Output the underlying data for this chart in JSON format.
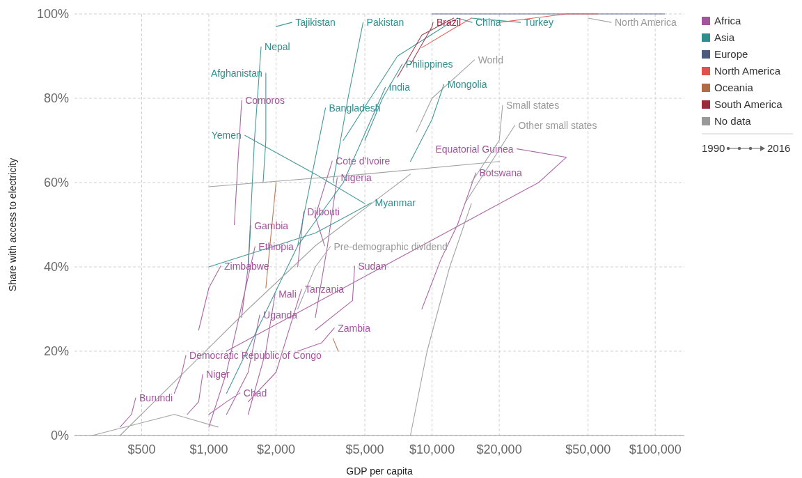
{
  "chart_data": {
    "type": "line",
    "xlabel": "GDP per capita",
    "ylabel": "Share with access to electricity",
    "log": "x",
    "grid": true,
    "legend": "top right",
    "line_style": "solid",
    "xlim": [
      250,
      135000
    ],
    "xticks": [
      {
        "value": 500,
        "label": "$500"
      },
      {
        "value": 1000,
        "label": "$1,000"
      },
      {
        "value": 2000,
        "label": "$2,000"
      },
      {
        "value": 5000,
        "label": "$5,000"
      },
      {
        "value": 10000,
        "label": "$10,000"
      },
      {
        "value": 20000,
        "label": "$20,000"
      },
      {
        "value": 50000,
        "label": "$50,000"
      },
      {
        "value": 100000,
        "label": "$100,000"
      }
    ],
    "ylim": [
      0,
      100
    ],
    "yticks": [
      {
        "value": 0,
        "label": "0%"
      },
      {
        "value": 20,
        "label": "20%"
      },
      {
        "value": 40,
        "label": "40%"
      },
      {
        "value": 60,
        "label": "60%"
      },
      {
        "value": 80,
        "label": "80%"
      },
      {
        "value": 100,
        "label": "100%"
      }
    ],
    "series": [
      {
        "name": "Africa",
        "color": "#a2559c",
        "x": [
          1300,
          1350,
          1403,
          null,
          1200,
          6000,
          30000,
          40000,
          24000,
          null,
          9000,
          11000,
          13000,
          15700,
          null,
          3300,
          3000,
          3570,
          null,
          3000,
          3400,
          3760,
          null,
          2500,
          2660,
          null,
          1400,
          1500,
          1540,
          null,
          1000,
          1200,
          1610,
          null,
          900,
          1000,
          1130,
          null,
          3000,
          4400,
          4500,
          null,
          1500,
          1800,
          1980,
          null,
          1500,
          2000,
          2600,
          null,
          1200,
          1500,
          1690,
          null,
          2500,
          3200,
          3650,
          null,
          700,
          750,
          789,
          null,
          800,
          900,
          938,
          null,
          1000,
          1200,
          1380,
          null,
          400,
          450,
          470
        ],
        "values": [
          50,
          65,
          79.5,
          null,
          20,
          40,
          60,
          66,
          68,
          null,
          30,
          42,
          50,
          62.3,
          null,
          45,
          52,
          65.1,
          null,
          28,
          45,
          61.2,
          null,
          40,
          53.1,
          null,
          28,
          40,
          49.8,
          null,
          2,
          15,
          44.8,
          null,
          25,
          35,
          40.2,
          null,
          25,
          32,
          40.2,
          null,
          5,
          20,
          33.6,
          null,
          8,
          15,
          34.7,
          null,
          5,
          15,
          28.6,
          null,
          20,
          22,
          25.5,
          null,
          10,
          14,
          19,
          null,
          5,
          8,
          14.5,
          null,
          5,
          8,
          10.1,
          null,
          2,
          5,
          8.9
        ]
      },
      {
        "name": "Asia",
        "color": "#2f8f8f",
        "x": [
          2000,
          2355,
          null,
          3600,
          4200,
          4910,
          null,
          4000,
          7000,
          13000,
          15100,
          null,
          15000,
          24900,
          null,
          1500,
          1600,
          1714,
          null,
          5000,
          6000,
          7350,
          null,
          2500,
          4000,
          6180,
          null,
          8000,
          10000,
          11300,
          null,
          1750,
          1800,
          1800,
          null,
          1200,
          2500,
          3330,
          null,
          5000,
          3000,
          1450,
          null,
          1000,
          3000,
          5350
        ],
        "values": [
          97,
          98,
          null,
          60,
          80,
          98,
          null,
          70,
          90,
          99,
          98,
          null,
          99,
          98,
          null,
          40,
          70,
          92.2,
          null,
          70,
          80,
          88.1,
          null,
          45,
          60,
          82.6,
          null,
          65,
          75,
          83.3,
          null,
          60,
          70,
          86,
          null,
          10,
          45,
          77.7,
          null,
          55,
          62,
          71.2,
          null,
          40,
          48,
          55.2
        ]
      },
      {
        "name": "Europe",
        "color": "#4c5a7d",
        "x": [
          10000,
          30000,
          70000,
          110000
        ],
        "values": [
          100,
          100,
          100,
          100
        ]
      },
      {
        "name": "North America",
        "color": "#e0524d",
        "x": [
          9000,
          12000,
          15000,
          null,
          20000,
          40000,
          55000
        ],
        "values": [
          92,
          96,
          99,
          null,
          98,
          100,
          100
        ]
      },
      {
        "name": "Oceania",
        "color": "#b16c46",
        "x": [
          1800,
          2000,
          null,
          3800,
          3600
        ],
        "values": [
          35,
          60,
          null,
          20,
          23
        ]
      },
      {
        "name": "South America",
        "color": "#9a2a3a",
        "x": [
          8000,
          10000,
          10100,
          null,
          7000,
          9000,
          12500
        ],
        "values": [
          88,
          97,
          98,
          null,
          85,
          95,
          99
        ]
      },
      {
        "name": "No data",
        "color": "#999999",
        "x": [
          8500,
          10000,
          15500,
          null,
          15000,
          20000,
          20700,
          null,
          14000,
          23500,
          null,
          2500,
          3000,
          3500,
          null,
          50000,
          63500,
          null,
          300,
          700,
          1100,
          null,
          8000,
          9500,
          12000,
          15000,
          null,
          1000,
          5000,
          20000,
          null,
          400,
          1500,
          3000,
          8000
        ],
        "values": [
          72,
          80,
          89.1,
          null,
          60,
          70,
          78.3,
          null,
          55,
          73.6,
          null,
          30,
          40,
          44.8,
          null,
          99,
          98,
          null,
          0,
          5,
          2,
          null,
          0,
          20,
          40,
          55,
          null,
          59,
          62,
          65,
          null,
          0,
          30,
          45,
          62
        ]
      }
    ],
    "annotations": [
      "1990",
      "2016",
      {
        "text": "Tajikistan",
        "x": 2355,
        "y": 98
      },
      {
        "text": "Pakistan",
        "x": 4910,
        "y": 98
      },
      {
        "text": "Brazil",
        "x": 10100,
        "y": 98
      },
      {
        "text": "China",
        "x": 15100,
        "y": 98
      },
      {
        "text": "Turkey",
        "x": 24900,
        "y": 98
      },
      {
        "text": "North America",
        "x": 63500,
        "y": 98
      },
      {
        "text": "Nepal",
        "x": 1714,
        "y": 92.2
      },
      {
        "text": "Philippines",
        "x": 7350,
        "y": 88.1
      },
      {
        "text": "World",
        "x": 15500,
        "y": 89.1
      },
      {
        "text": "Afghanistan",
        "x": 1800,
        "y": 86
      },
      {
        "text": "India",
        "x": 6180,
        "y": 82.6
      },
      {
        "text": "Mongolia",
        "x": 11300,
        "y": 83.3
      },
      {
        "text": "Comoros",
        "x": 1403,
        "y": 79.5
      },
      {
        "text": "Bangladesh",
        "x": 3330,
        "y": 77.7
      },
      {
        "text": "Small states",
        "x": 20700,
        "y": 78.3
      },
      {
        "text": "Other small states",
        "x": 23500,
        "y": 73.6
      },
      {
        "text": "Yemen",
        "x": 1450,
        "y": 71.2
      },
      {
        "text": "Equatorial Guinea",
        "x": 24000,
        "y": 68
      },
      {
        "text": "Cote d'Ivoire",
        "x": 3570,
        "y": 65.1
      },
      {
        "text": "Botswana",
        "x": 15700,
        "y": 62.3
      },
      {
        "text": "Nigeria",
        "x": 3760,
        "y": 61.2
      },
      {
        "text": "Myanmar",
        "x": 5350,
        "y": 55.2
      },
      {
        "text": "Djibouti",
        "x": 2660,
        "y": 53.1
      },
      {
        "text": "Gambia",
        "x": 1540,
        "y": 49.8
      },
      {
        "text": "Ethiopia",
        "x": 1610,
        "y": 44.8
      },
      {
        "text": "Pre-demographic dividend",
        "x": 3500,
        "y": 44.8
      },
      {
        "text": "Zimbabwe",
        "x": 1130,
        "y": 40.2
      },
      {
        "text": "Sudan",
        "x": 4500,
        "y": 40.2
      },
      {
        "text": "Mali",
        "x": 1980,
        "y": 33.6
      },
      {
        "text": "Tanzania",
        "x": 2600,
        "y": 34.7
      },
      {
        "text": "Uganda",
        "x": 1690,
        "y": 28.6
      },
      {
        "text": "Zambia",
        "x": 3650,
        "y": 25.5
      },
      {
        "text": "Democratic Republic of Congo",
        "x": 789,
        "y": 19
      },
      {
        "text": "Niger",
        "x": 938,
        "y": 14.5
      },
      {
        "text": "Chad",
        "x": 1380,
        "y": 10.1
      },
      {
        "text": "Burundi",
        "x": 470,
        "y": 8.9
      }
    ]
  }
}
